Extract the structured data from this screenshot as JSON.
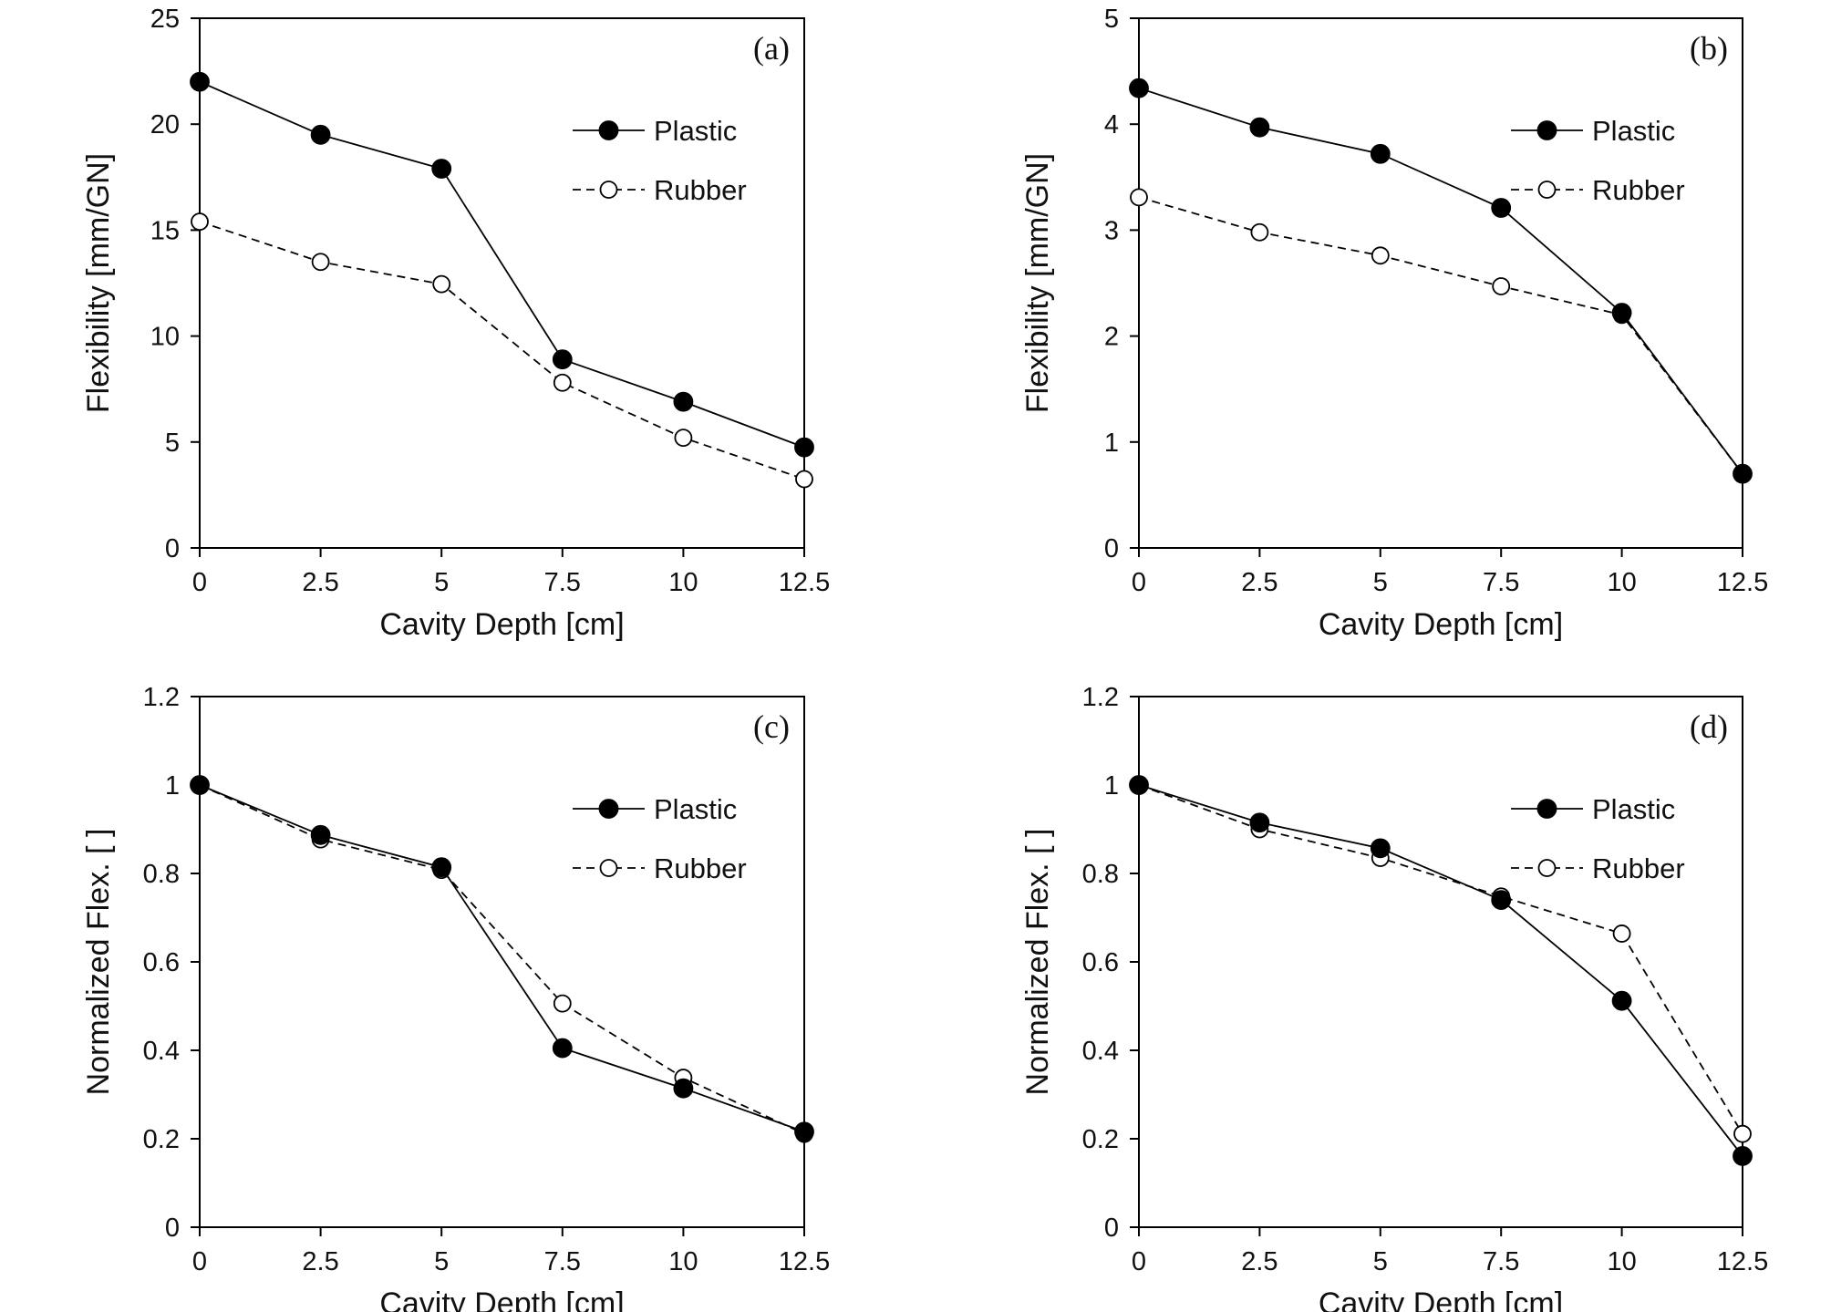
{
  "chart_data": [
    {
      "type": "line",
      "panel_label": "(a)",
      "xlabel": "Cavity Depth [cm]",
      "ylabel": "Flexibility [mm/GN]",
      "x": [
        0,
        2.5,
        5,
        7.5,
        10,
        12.5
      ],
      "xlim": [
        0,
        12.5
      ],
      "ylim": [
        0,
        25
      ],
      "xticks": [
        "0",
        "2.5",
        "5",
        "7.5",
        "10",
        "12.5"
      ],
      "yticks": [
        "0",
        "5",
        "10",
        "15",
        "20",
        "25"
      ],
      "grid": false,
      "legend_position": "top-right",
      "series": [
        {
          "name": "Plastic",
          "marker": "filled-circle",
          "line": "solid",
          "values": [
            22.0,
            19.5,
            17.9,
            8.9,
            6.9,
            4.75
          ]
        },
        {
          "name": "Rubber",
          "marker": "open-circle",
          "line": "dashed",
          "values": [
            15.4,
            13.5,
            12.45,
            7.8,
            5.2,
            3.25
          ]
        }
      ]
    },
    {
      "type": "line",
      "panel_label": "(b)",
      "xlabel": "Cavity Depth [cm]",
      "ylabel": "Flexibility [mm/GN]",
      "x": [
        0,
        2.5,
        5,
        7.5,
        10,
        12.5
      ],
      "xlim": [
        0,
        12.5
      ],
      "ylim": [
        0,
        5
      ],
      "xticks": [
        "0",
        "2.5",
        "5",
        "7.5",
        "10",
        "12.5"
      ],
      "yticks": [
        "0",
        "1",
        "2",
        "3",
        "4",
        "5"
      ],
      "grid": false,
      "legend_position": "top-right",
      "series": [
        {
          "name": "Plastic",
          "marker": "filled-circle",
          "line": "solid",
          "values": [
            4.34,
            3.97,
            3.72,
            3.21,
            2.22,
            0.7
          ]
        },
        {
          "name": "Rubber",
          "marker": "open-circle",
          "line": "dashed",
          "values": [
            3.31,
            2.98,
            2.76,
            2.47,
            2.2,
            0.7
          ]
        }
      ]
    },
    {
      "type": "line",
      "panel_label": "(c)",
      "xlabel": "Cavity Depth [cm]",
      "ylabel": "Normalized Flex. [ ]",
      "x": [
        0,
        2.5,
        5,
        7.5,
        10,
        12.5
      ],
      "xlim": [
        0,
        12.5
      ],
      "ylim": [
        0,
        1.2
      ],
      "xticks": [
        "0",
        "2.5",
        "5",
        "7.5",
        "10",
        "12.5"
      ],
      "yticks": [
        "0",
        "0.2",
        "0.4",
        "0.6",
        "0.8",
        "1",
        "1.2"
      ],
      "grid": false,
      "legend_position": "top-right",
      "series": [
        {
          "name": "Plastic",
          "marker": "filled-circle",
          "line": "solid",
          "values": [
            1.0,
            0.887,
            0.814,
            0.405,
            0.314,
            0.216
          ]
        },
        {
          "name": "Rubber",
          "marker": "open-circle",
          "line": "dashed",
          "values": [
            1.0,
            0.877,
            0.808,
            0.506,
            0.338,
            0.211
          ]
        }
      ]
    },
    {
      "type": "line",
      "panel_label": "(d)",
      "xlabel": "Cavity Depth [cm]",
      "ylabel": "Normalized Flex. [ ]",
      "x": [
        0,
        2.5,
        5,
        7.5,
        10,
        12.5
      ],
      "xlim": [
        0,
        12.5
      ],
      "ylim": [
        0,
        1.2
      ],
      "xticks": [
        "0",
        "2.5",
        "5",
        "7.5",
        "10",
        "12.5"
      ],
      "yticks": [
        "0",
        "0.2",
        "0.4",
        "0.6",
        "0.8",
        "1",
        "1.2"
      ],
      "grid": false,
      "legend_position": "top-right",
      "series": [
        {
          "name": "Plastic",
          "marker": "filled-circle",
          "line": "solid",
          "values": [
            1.0,
            0.915,
            0.857,
            0.74,
            0.512,
            0.161
          ]
        },
        {
          "name": "Rubber",
          "marker": "open-circle",
          "line": "dashed",
          "values": [
            1.0,
            0.9,
            0.835,
            0.748,
            0.664,
            0.211
          ]
        }
      ]
    }
  ]
}
